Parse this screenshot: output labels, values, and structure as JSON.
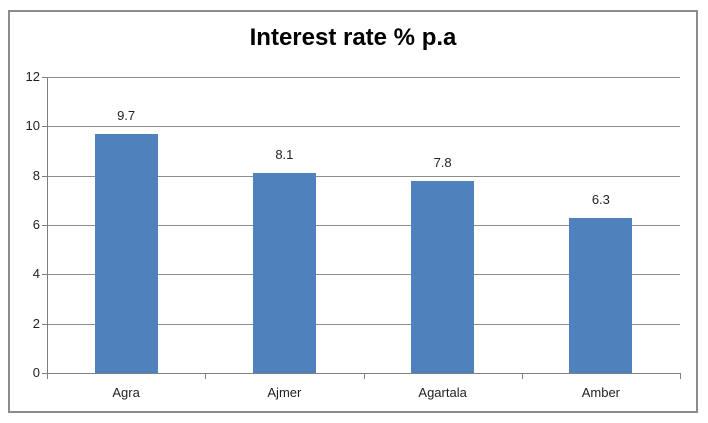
{
  "chart_data": {
    "type": "bar",
    "title": "Interest rate % p.a",
    "categories": [
      "Agra",
      "Ajmer",
      "Agartala",
      "Amber"
    ],
    "values": [
      9.7,
      8.1,
      7.8,
      6.3
    ],
    "data_labels": [
      "9.7",
      "8.1",
      "7.8",
      "6.3"
    ],
    "series_name": "Interest rate",
    "y_ticks": [
      0,
      2,
      4,
      6,
      8,
      10,
      12
    ],
    "ylim": [
      0,
      12
    ],
    "xlabel": "",
    "ylabel": "",
    "grid": true,
    "legend_position": "none",
    "colors": {
      "bar": "#4F81BD",
      "gridline": "#8D8D8D",
      "axis": "#7F7F7F",
      "chart_border": "#8C8C8C",
      "title": "#000000",
      "labels": "#1F1F1F",
      "background": "#FFFFFF"
    }
  }
}
